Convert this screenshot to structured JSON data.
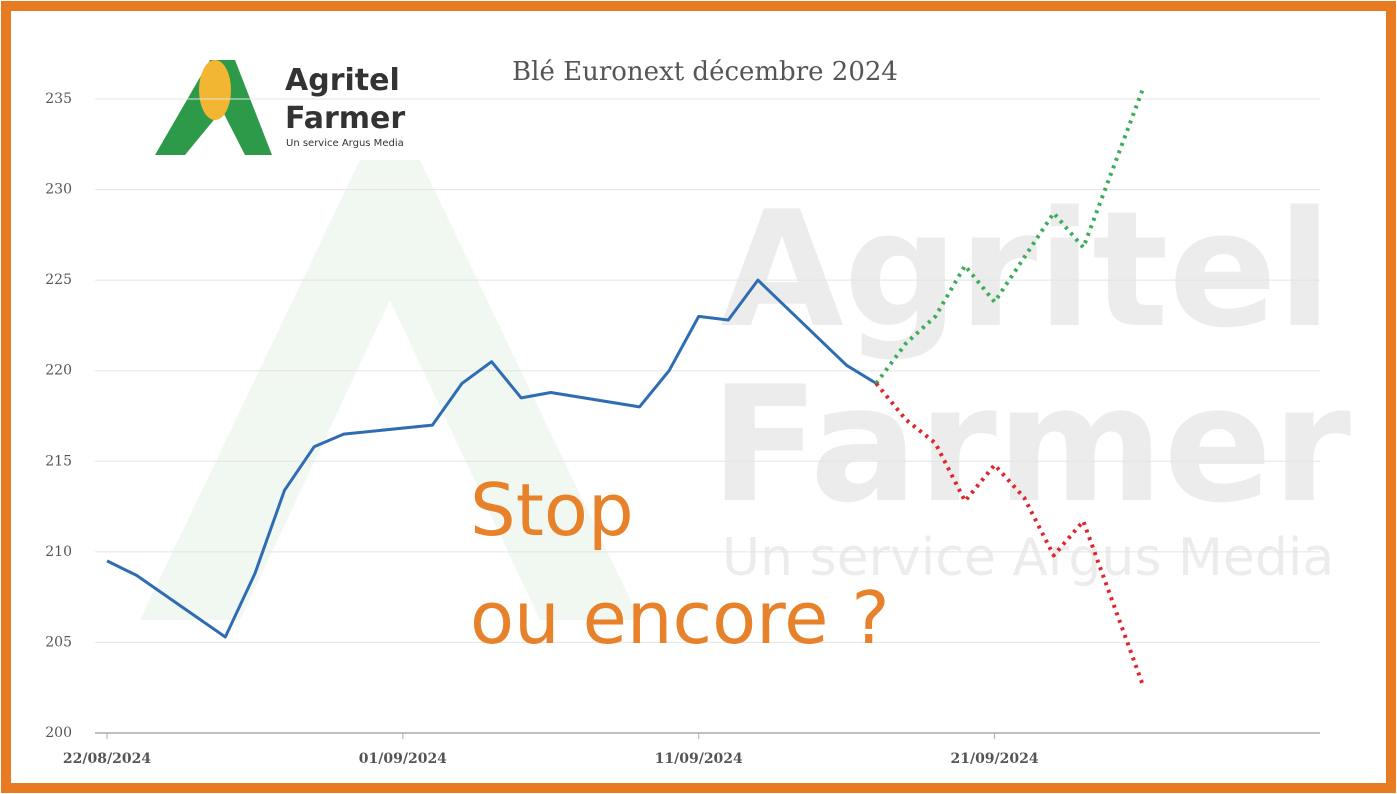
{
  "chart_data": {
    "type": "line",
    "title": "Blé Euronext décembre 2024",
    "logo": {
      "name": [
        "Agritel",
        "Farmer"
      ],
      "tagline": "Un service Argus Media"
    },
    "annotation": [
      "Stop",
      "ou encore ?"
    ],
    "xlim": [
      "2024-08-22",
      "2024-10-02"
    ],
    "xticks": [
      {
        "value": "2024-08-22",
        "label": "22/08/2024"
      },
      {
        "value": "2024-09-01",
        "label": "01/09/2024"
      },
      {
        "value": "2024-09-11",
        "label": "11/09/2024"
      },
      {
        "value": "2024-09-21",
        "label": "21/09/2024"
      }
    ],
    "ylim": [
      200,
      235
    ],
    "yticks": [
      200,
      205,
      210,
      215,
      220,
      225,
      230,
      235
    ],
    "grid": true,
    "series": [
      {
        "color": "#2f6db3",
        "dashed": false,
        "x": [
          "2024-08-22",
          "2024-08-23",
          "2024-08-26",
          "2024-08-27",
          "2024-08-28",
          "2024-08-29",
          "2024-08-30",
          "2024-09-02",
          "2024-09-03",
          "2024-09-04",
          "2024-09-05",
          "2024-09-06",
          "2024-09-09",
          "2024-09-10",
          "2024-09-11",
          "2024-09-12",
          "2024-09-13",
          "2024-09-16",
          "2024-09-17"
        ],
        "values": [
          209.5,
          208.7,
          205.3,
          208.8,
          213.4,
          215.8,
          216.5,
          217.0,
          219.3,
          220.5,
          218.5,
          218.8,
          218.0,
          220.0,
          223.0,
          222.8,
          225.0,
          220.3,
          219.3
        ]
      },
      {
        "color": "#3cae5a",
        "dashed": true,
        "x": [
          "2024-09-17",
          "2024-09-18",
          "2024-09-19",
          "2024-09-20",
          "2024-09-21",
          "2024-09-23",
          "2024-09-24",
          "2024-09-26"
        ],
        "values": [
          219.3,
          221.5,
          223.0,
          225.8,
          223.8,
          228.7,
          226.8,
          235.5
        ]
      },
      {
        "color": "#e0262b",
        "dashed": true,
        "x": [
          "2024-09-17",
          "2024-09-18",
          "2024-09-19",
          "2024-09-20",
          "2024-09-21",
          "2024-09-22",
          "2024-09-23",
          "2024-09-24",
          "2024-09-26"
        ],
        "values": [
          219.3,
          217.3,
          216.0,
          212.8,
          214.8,
          213.0,
          209.8,
          211.7,
          202.7
        ]
      }
    ]
  }
}
